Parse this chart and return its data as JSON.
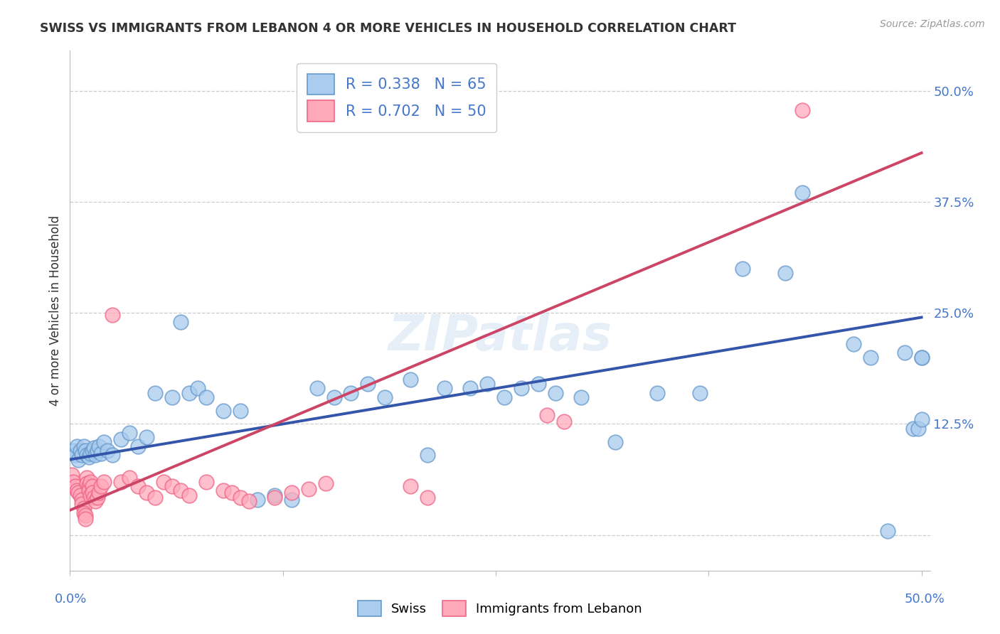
{
  "title": "SWISS VS IMMIGRANTS FROM LEBANON 4 OR MORE VEHICLES IN HOUSEHOLD CORRELATION CHART",
  "source": "Source: ZipAtlas.com",
  "ylabel": "4 or more Vehicles in Household",
  "xlim": [
    0.0,
    0.505
  ],
  "ylim": [
    -0.04,
    0.545
  ],
  "yticks": [
    0.0,
    0.125,
    0.25,
    0.375,
    0.5
  ],
  "ytick_labels": [
    "",
    "12.5%",
    "25.0%",
    "37.5%",
    "50.0%"
  ],
  "background_color": "#ffffff",
  "grid_color": "#cccccc",
  "swiss_line_color": "#3355aa",
  "swiss_dot_face": "#aaccee",
  "swiss_dot_edge": "#6699cc",
  "lebanon_line_color": "#cc4466",
  "lebanon_dot_face": "#ffaabb",
  "lebanon_dot_edge": "#ee6688",
  "swiss_line_x": [
    0.0,
    0.5
  ],
  "swiss_line_y": [
    0.085,
    0.245
  ],
  "lebanon_line_x": [
    0.0,
    0.5
  ],
  "lebanon_line_y": [
    0.028,
    0.43
  ],
  "swiss_x": [
    0.002,
    0.003,
    0.004,
    0.005,
    0.006,
    0.007,
    0.008,
    0.009,
    0.01,
    0.011,
    0.012,
    0.013,
    0.014,
    0.015,
    0.016,
    0.017,
    0.018,
    0.02,
    0.022,
    0.025,
    0.03,
    0.035,
    0.04,
    0.045,
    0.05,
    0.06,
    0.065,
    0.07,
    0.075,
    0.08,
    0.09,
    0.1,
    0.11,
    0.12,
    0.13,
    0.145,
    0.155,
    0.165,
    0.175,
    0.185,
    0.2,
    0.21,
    0.22,
    0.235,
    0.245,
    0.255,
    0.265,
    0.275,
    0.285,
    0.3,
    0.32,
    0.345,
    0.37,
    0.395,
    0.42,
    0.43,
    0.46,
    0.47,
    0.48,
    0.49,
    0.495,
    0.498,
    0.5,
    0.5,
    0.5
  ],
  "swiss_y": [
    0.095,
    0.09,
    0.1,
    0.085,
    0.095,
    0.09,
    0.1,
    0.095,
    0.09,
    0.088,
    0.092,
    0.095,
    0.098,
    0.09,
    0.095,
    0.1,
    0.092,
    0.105,
    0.095,
    0.09,
    0.108,
    0.115,
    0.1,
    0.11,
    0.16,
    0.155,
    0.24,
    0.16,
    0.165,
    0.155,
    0.14,
    0.14,
    0.04,
    0.045,
    0.04,
    0.165,
    0.155,
    0.16,
    0.17,
    0.155,
    0.175,
    0.09,
    0.165,
    0.165,
    0.17,
    0.155,
    0.165,
    0.17,
    0.16,
    0.155,
    0.105,
    0.16,
    0.16,
    0.3,
    0.295,
    0.385,
    0.215,
    0.2,
    0.005,
    0.205,
    0.12,
    0.12,
    0.2,
    0.2,
    0.13
  ],
  "lebanon_x": [
    0.001,
    0.002,
    0.003,
    0.004,
    0.005,
    0.006,
    0.007,
    0.007,
    0.008,
    0.008,
    0.009,
    0.009,
    0.01,
    0.01,
    0.011,
    0.011,
    0.012,
    0.012,
    0.013,
    0.013,
    0.014,
    0.015,
    0.016,
    0.017,
    0.018,
    0.02,
    0.025,
    0.03,
    0.035,
    0.04,
    0.045,
    0.05,
    0.055,
    0.06,
    0.065,
    0.07,
    0.08,
    0.09,
    0.095,
    0.1,
    0.105,
    0.12,
    0.13,
    0.14,
    0.15,
    0.2,
    0.21,
    0.28,
    0.29,
    0.43
  ],
  "lebanon_y": [
    0.068,
    0.06,
    0.055,
    0.05,
    0.048,
    0.045,
    0.04,
    0.035,
    0.03,
    0.025,
    0.022,
    0.018,
    0.065,
    0.058,
    0.055,
    0.05,
    0.045,
    0.06,
    0.055,
    0.048,
    0.042,
    0.038,
    0.042,
    0.048,
    0.055,
    0.06,
    0.248,
    0.06,
    0.065,
    0.055,
    0.048,
    0.042,
    0.06,
    0.055,
    0.05,
    0.045,
    0.06,
    0.05,
    0.048,
    0.042,
    0.038,
    0.042,
    0.048,
    0.052,
    0.058,
    0.055,
    0.042,
    0.135,
    0.128,
    0.478
  ]
}
